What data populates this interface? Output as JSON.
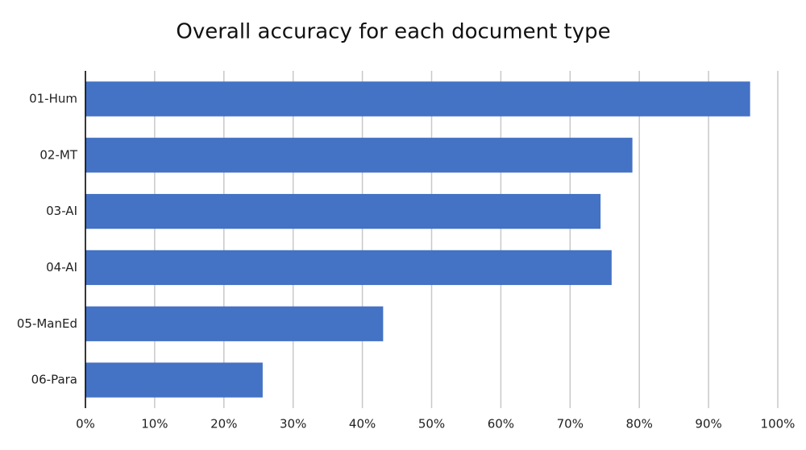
{
  "chart_data": {
    "type": "bar",
    "title": "Overall accuracy for each document type",
    "categories": [
      "01-Hum",
      "02-MT",
      "03-AI",
      "04-AI",
      "05-ManEd",
      "06-Para"
    ],
    "values": [
      96,
      79,
      74.4,
      76,
      43,
      25.6
    ],
    "color": "#4472c4",
    "xlim": [
      0,
      100
    ],
    "xticks": [
      {
        "value": 0,
        "label": "0%"
      },
      {
        "value": 10,
        "label": "10%"
      },
      {
        "value": 20,
        "label": "20%"
      },
      {
        "value": 30,
        "label": "30%"
      },
      {
        "value": 40,
        "label": "40%"
      },
      {
        "value": 50,
        "label": "50%"
      },
      {
        "value": 60,
        "label": "60%"
      },
      {
        "value": 70,
        "label": "70%"
      },
      {
        "value": 80,
        "label": "80%"
      },
      {
        "value": 90,
        "label": "90%"
      },
      {
        "value": 100,
        "label": "100%"
      }
    ],
    "grid": true
  }
}
